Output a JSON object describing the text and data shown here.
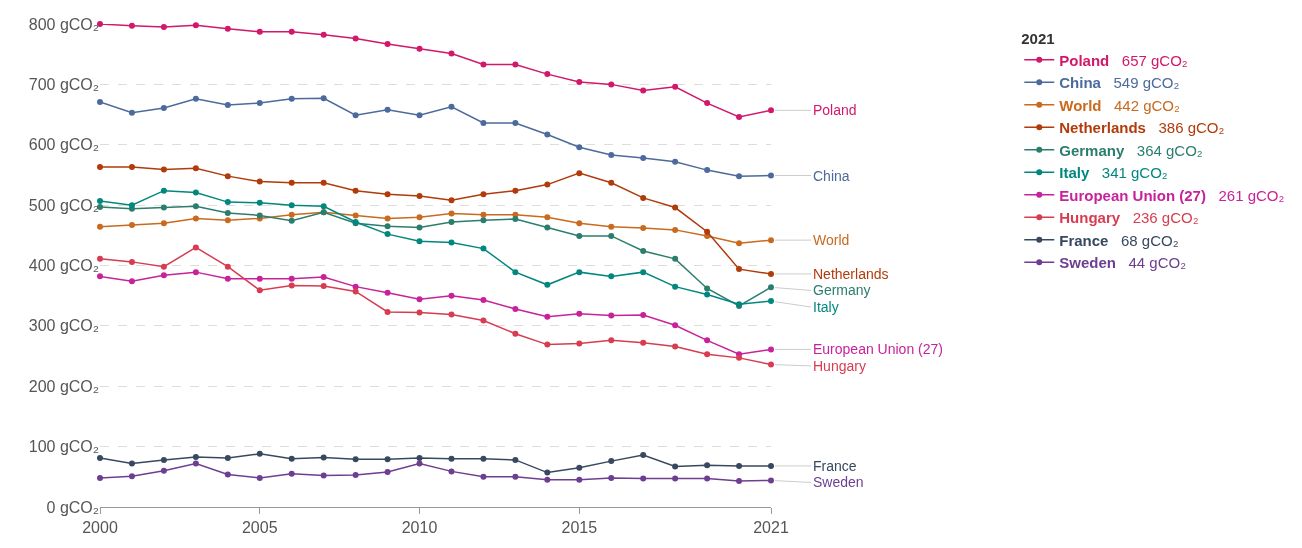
{
  "chart_data": {
    "type": "line",
    "x": [
      2000,
      2001,
      2002,
      2003,
      2004,
      2005,
      2006,
      2007,
      2008,
      2009,
      2010,
      2011,
      2012,
      2013,
      2014,
      2015,
      2016,
      2017,
      2018,
      2019,
      2020,
      2021
    ],
    "series": [
      {
        "name": "Poland",
        "color": "#d1186a",
        "values": [
          800,
          797,
          795,
          798,
          792,
          787,
          787,
          782,
          776,
          767,
          759,
          751,
          733,
          733,
          717,
          704,
          700,
          690,
          696,
          669,
          646,
          657
        ]
      },
      {
        "name": "China",
        "color": "#4c6a9c",
        "values": [
          671,
          653,
          661,
          676,
          666,
          669,
          676,
          677,
          649,
          658,
          649,
          663,
          636,
          636,
          617,
          596,
          583,
          578,
          572,
          558,
          548,
          549
        ]
      },
      {
        "name": "World",
        "color": "#c96a1e",
        "values": [
          464,
          467,
          470,
          478,
          475,
          478,
          484,
          488,
          483,
          478,
          480,
          486,
          484,
          484,
          480,
          470,
          464,
          462,
          459,
          449,
          437,
          442
        ]
      },
      {
        "name": "Netherlands",
        "color": "#b13b0b",
        "values": [
          563,
          563,
          559,
          561,
          548,
          539,
          537,
          537,
          524,
          518,
          515,
          508,
          518,
          524,
          534,
          553,
          537,
          512,
          496,
          456,
          394,
          386
        ]
      },
      {
        "name": "Germany",
        "color": "#2b7d6e",
        "values": [
          497,
          494,
          496,
          498,
          487,
          483,
          474,
          488,
          470,
          465,
          463,
          472,
          475,
          477,
          463,
          449,
          449,
          424,
          411,
          362,
          333,
          364
        ]
      },
      {
        "name": "Italy",
        "color": "#00877f",
        "values": [
          507,
          500,
          524,
          521,
          505,
          504,
          500,
          498,
          472,
          452,
          440,
          438,
          428,
          389,
          368,
          389,
          382,
          389,
          365,
          352,
          336,
          341
        ]
      },
      {
        "name": "European Union (27)",
        "color": "#c8229a",
        "values": [
          382,
          374,
          384,
          389,
          378,
          378,
          378,
          381,
          365,
          355,
          344,
          350,
          343,
          328,
          315,
          320,
          317,
          318,
          301,
          276,
          253,
          261
        ]
      },
      {
        "name": "Hungary",
        "color": "#d73c50",
        "values": [
          411,
          406,
          398,
          430,
          398,
          359,
          367,
          366,
          357,
          323,
          322,
          319,
          309,
          287,
          269,
          271,
          276,
          272,
          266,
          253,
          247,
          236
        ]
      },
      {
        "name": "France",
        "color": "#38485e",
        "values": [
          81,
          72,
          78,
          83,
          81,
          88,
          80,
          82,
          79,
          79,
          81,
          80,
          80,
          78,
          57,
          65,
          76,
          86,
          67,
          69,
          68,
          68
        ]
      },
      {
        "name": "Sweden",
        "color": "#6d3e91",
        "values": [
          48,
          51,
          60,
          72,
          54,
          48,
          55,
          52,
          53,
          58,
          72,
          59,
          50,
          50,
          45,
          45,
          48,
          47,
          47,
          47,
          43,
          44
        ]
      }
    ],
    "annotations": [
      "657 gCO₂",
      "549 gCO₂",
      "442 gCO₂",
      "386 gCO₂",
      "364 gCO₂",
      "341 gCO₂",
      "261 gCO₂",
      "236 gCO₂",
      "68 gCO₂",
      "44 gCO₂"
    ],
    "xlim": [
      2000,
      2021
    ],
    "xticks": [
      2000,
      2005,
      2010,
      2015,
      2021
    ],
    "ylim": [
      0,
      800
    ],
    "yticks": [
      {
        "value": 0,
        "label": "0 gCO₂"
      },
      {
        "value": 100,
        "label": "100 gCO₂"
      },
      {
        "value": 200,
        "label": "200 gCO₂"
      },
      {
        "value": 300,
        "label": "300 gCO₂"
      },
      {
        "value": 400,
        "label": "400 gCO₂"
      },
      {
        "value": 500,
        "label": "500 gCO₂"
      },
      {
        "value": 600,
        "label": "600 gCO₂"
      },
      {
        "value": 700,
        "label": "700 gCO₂"
      },
      {
        "value": 800,
        "label": "800 gCO₂"
      }
    ],
    "grid": "y",
    "legend": "right",
    "legend_title": "2021",
    "marker": "circle",
    "line_style": "solid"
  }
}
